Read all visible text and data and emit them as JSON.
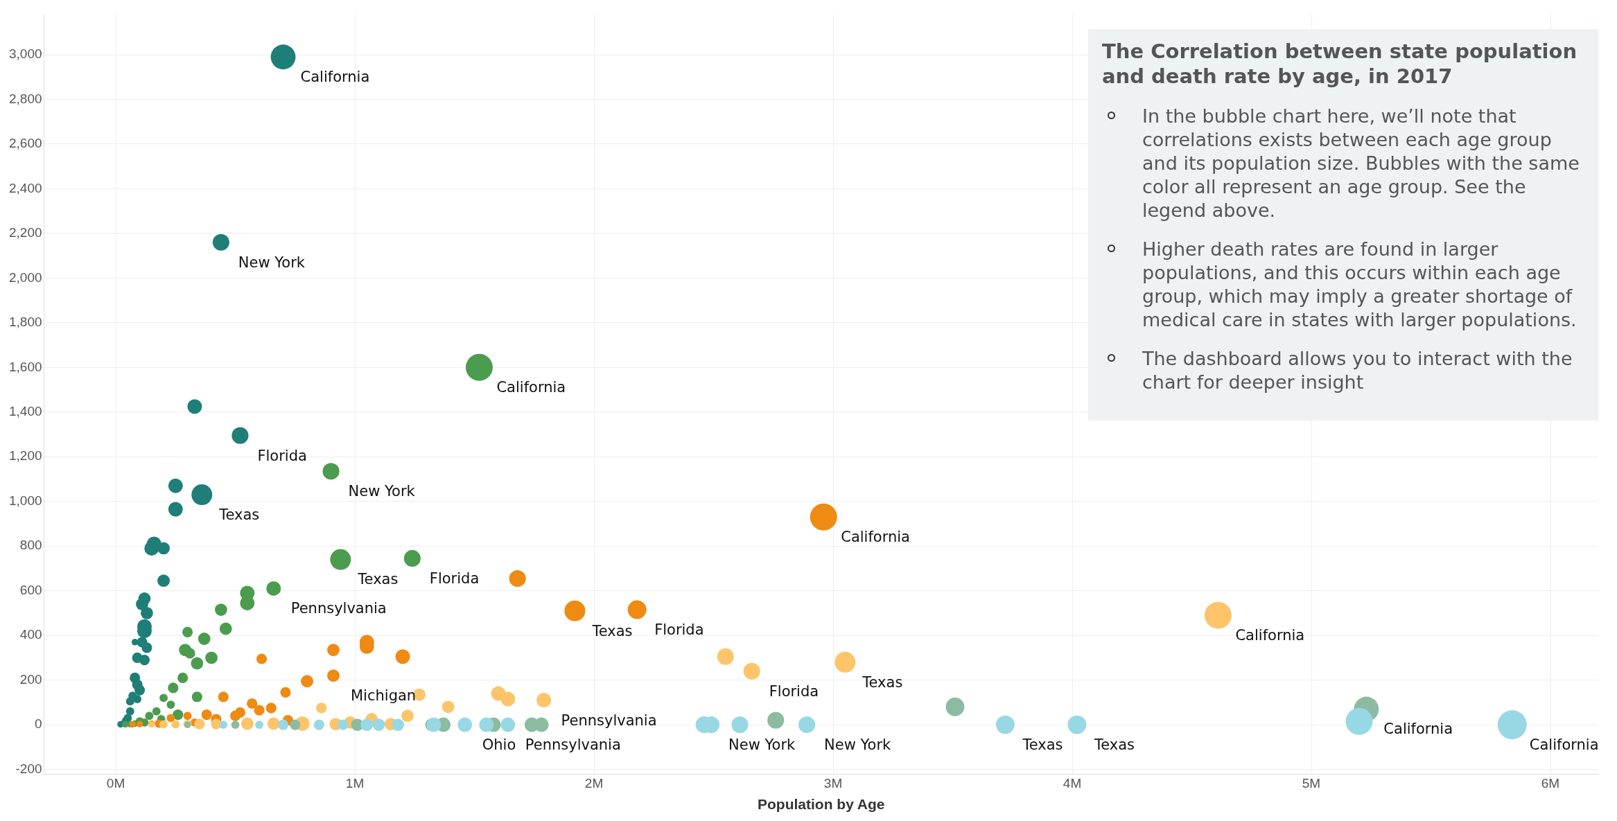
{
  "chart_data": {
    "type": "bubble",
    "title": "The Correlation between state population and death rate by age, in 2017",
    "xlabel": "Population by Age",
    "annotations": [
      "In the bubble chart here, we’ll note that correlations exists between each age group and its population size. Bubbles with the same color all represent an age group. See the legend above.",
      "Higher death rates are found in larger populations, and this occurs within each age group, which may imply a greater shortage of medical care in states with larger populations.",
      "The dashboard allows you to interact with the chart for deeper insight",
      {
        "text": "California",
        "x": 0.7,
        "y": 2990
      },
      {
        "text": "New York",
        "x": 0.44,
        "y": 2160
      },
      {
        "text": "Florida",
        "x": 0.52,
        "y": 1295
      },
      {
        "text": "Texas",
        "x": 0.36,
        "y": 1030
      },
      {
        "text": "California",
        "x": 1.52,
        "y": 1600
      },
      {
        "text": "New York",
        "x": 0.9,
        "y": 1135
      },
      {
        "text": "Texas",
        "x": 0.94,
        "y": 740
      },
      {
        "text": "Florida",
        "x": 1.24,
        "y": 745
      },
      {
        "text": "Pennsylvania",
        "x": 0.66,
        "y": 610
      },
      {
        "text": "California",
        "x": 2.96,
        "y": 930
      },
      {
        "text": "Texas",
        "x": 1.92,
        "y": 510
      },
      {
        "text": "Florida",
        "x": 2.18,
        "y": 515
      },
      {
        "text": "Michigan",
        "x": 0.91,
        "y": 220
      },
      {
        "text": "California",
        "x": 4.61,
        "y": 490
      },
      {
        "text": "Texas",
        "x": 3.05,
        "y": 280
      },
      {
        "text": "Florida",
        "x": 2.66,
        "y": 240
      },
      {
        "text": "Pennsylvania",
        "x": 1.79,
        "y": 110
      },
      {
        "text": "Ohio",
        "x": 1.46,
        "y": 0
      },
      {
        "text": "Pennsylvania",
        "x": 1.64,
        "y": 0
      },
      {
        "text": "New York",
        "x": 2.49,
        "y": 0
      },
      {
        "text": "New York",
        "x": 2.89,
        "y": 0
      },
      {
        "text": "Texas",
        "x": 3.72,
        "y": 0
      },
      {
        "text": "Texas",
        "x": 4.02,
        "y": 0
      },
      {
        "text": "California",
        "x": 5.23,
        "y": 70
      },
      {
        "text": "California",
        "x": 5.84,
        "y": 0
      }
    ],
    "series": [
      {
        "color": "#98d8e4",
        "x": [
          5.84,
          5.2,
          4.02,
          3.72,
          2.89,
          2.61,
          2.49,
          2.46,
          1.64,
          1.55,
          1.46,
          1.33,
          1.18,
          1.1,
          1.05,
          0.95,
          0.85,
          0.7,
          0.6,
          0.45
        ],
        "values": [
          0,
          15,
          0,
          0,
          0,
          0,
          0,
          0,
          0,
          0,
          0,
          0,
          0,
          0,
          0,
          0,
          0,
          0,
          0,
          0
        ],
        "sizes": [
          1,
          0.86,
          0.41,
          0.41,
          0.33,
          0.33,
          0.33,
          0.33,
          0.25,
          0.25,
          0.25,
          0.25,
          0.18,
          0.18,
          0.18,
          0.13,
          0.13,
          0.13,
          0.08,
          0.08
        ]
      },
      {
        "color": "#8dbba2",
        "x": [
          5.23,
          3.51,
          2.76,
          1.37,
          1.58,
          1.74,
          1.78,
          1.32,
          1.01,
          0.75,
          0.5,
          0.3
        ],
        "values": [
          70,
          80,
          20,
          0,
          0,
          0,
          0,
          0,
          0,
          0,
          0,
          0
        ],
        "sizes": [
          0.73,
          0.41,
          0.33,
          0.25,
          0.25,
          0.25,
          0.25,
          0.18,
          0.18,
          0.13,
          0.08,
          0.05
        ]
      },
      {
        "color": "#fdc46a",
        "x": [
          4.61,
          3.05,
          2.66,
          2.55,
          1.27,
          1.6,
          1.64,
          1.79,
          1.39,
          0.86,
          1.22,
          1.07,
          0.98,
          0.78,
          0.66,
          0.55,
          1.15,
          0.92,
          0.42,
          0.35,
          0.3,
          0.25,
          0.2,
          0.15
        ],
        "values": [
          490,
          280,
          240,
          305,
          135,
          140,
          115,
          110,
          80,
          75,
          40,
          25,
          10,
          5,
          5,
          5,
          3,
          3,
          3,
          3,
          3,
          2,
          2,
          2
        ],
        "sizes": [
          0.86,
          0.51,
          0.33,
          0.33,
          0.18,
          0.25,
          0.25,
          0.25,
          0.18,
          0.13,
          0.18,
          0.18,
          0.18,
          0.25,
          0.18,
          0.18,
          0.18,
          0.18,
          0.13,
          0.13,
          0.08,
          0.08,
          0.08,
          0.05
        ]
      },
      {
        "color": "#ef8a12",
        "x": [
          2.96,
          1.92,
          2.18,
          1.68,
          1.05,
          1.05,
          0.91,
          1.2,
          0.61,
          0.91,
          0.8,
          0.71,
          0.57,
          0.45,
          0.65,
          0.6,
          0.52,
          0.38,
          0.5,
          0.72,
          0.3,
          0.23,
          0.42,
          0.33,
          0.18,
          0.15,
          0.1,
          0.07
        ],
        "values": [
          930,
          510,
          515,
          655,
          370,
          350,
          335,
          305,
          295,
          220,
          195,
          145,
          95,
          125,
          75,
          65,
          55,
          45,
          40,
          20,
          40,
          30,
          25,
          10,
          5,
          5,
          3,
          2
        ],
        "sizes": [
          0.86,
          0.51,
          0.41,
          0.33,
          0.25,
          0.25,
          0.18,
          0.25,
          0.13,
          0.18,
          0.18,
          0.13,
          0.13,
          0.13,
          0.13,
          0.13,
          0.13,
          0.13,
          0.13,
          0.13,
          0.08,
          0.08,
          0.13,
          0.08,
          0.08,
          0.05,
          0.05,
          0.05
        ]
      },
      {
        "color": "#4b9c4e",
        "x": [
          1.52,
          0.9,
          0.94,
          1.24,
          0.66,
          0.55,
          0.55,
          0.44,
          0.46,
          0.3,
          0.37,
          0.29,
          0.31,
          0.4,
          0.34,
          0.28,
          0.24,
          0.34,
          0.2,
          0.23,
          0.17,
          0.26,
          0.14,
          0.19,
          0.1,
          0.12,
          0.08,
          0.06,
          0.04
        ],
        "values": [
          1600,
          1135,
          740,
          745,
          610,
          590,
          545,
          515,
          430,
          415,
          385,
          335,
          320,
          300,
          275,
          210,
          165,
          125,
          120,
          90,
          60,
          45,
          40,
          25,
          15,
          10,
          5,
          3,
          2
        ],
        "sizes": [
          0.86,
          0.33,
          0.51,
          0.33,
          0.25,
          0.25,
          0.25,
          0.18,
          0.18,
          0.13,
          0.18,
          0.18,
          0.13,
          0.18,
          0.18,
          0.13,
          0.13,
          0.13,
          0.08,
          0.08,
          0.08,
          0.13,
          0.08,
          0.08,
          0.08,
          0.08,
          0.05,
          0.05,
          0.05
        ]
      },
      {
        "color": "#1f7f78",
        "x": [
          0.7,
          0.44,
          0.33,
          0.52,
          0.25,
          0.36,
          0.25,
          0.16,
          0.15,
          0.2,
          0.2,
          0.12,
          0.11,
          0.13,
          0.12,
          0.12,
          0.08,
          0.11,
          0.13,
          0.09,
          0.12,
          0.08,
          0.09,
          0.1,
          0.07,
          0.09,
          0.06,
          0.06,
          0.05,
          0.04,
          0.03,
          0.02
        ],
        "values": [
          2990,
          2160,
          1425,
          1295,
          1070,
          1030,
          965,
          810,
          790,
          790,
          645,
          565,
          540,
          500,
          440,
          420,
          370,
          370,
          345,
          300,
          290,
          210,
          180,
          155,
          130,
          115,
          105,
          60,
          30,
          20,
          5,
          2
        ],
        "sizes": [
          0.73,
          0.33,
          0.25,
          0.33,
          0.25,
          0.51,
          0.25,
          0.25,
          0.25,
          0.18,
          0.18,
          0.18,
          0.18,
          0.18,
          0.25,
          0.25,
          0.05,
          0.13,
          0.13,
          0.13,
          0.13,
          0.13,
          0.13,
          0.13,
          0.08,
          0.08,
          0.08,
          0.08,
          0.08,
          0.05,
          0.05,
          0.05
        ]
      }
    ],
    "xlim": [
      -0.3,
      6.2
    ],
    "ylim": [
      -220,
      3180
    ],
    "xticks": [
      {
        "value": 0,
        "label": "0M"
      },
      {
        "value": 1,
        "label": "1M"
      },
      {
        "value": 2,
        "label": "2M"
      },
      {
        "value": 3,
        "label": "3M"
      },
      {
        "value": 4,
        "label": "4M"
      },
      {
        "value": 5,
        "label": "5M"
      },
      {
        "value": 6,
        "label": "6M"
      }
    ],
    "yticks": [
      -200,
      0,
      200,
      400,
      600,
      800,
      {
        "value": 1000,
        "label": "1,000"
      },
      {
        "value": 1200,
        "label": "1,200"
      },
      {
        "value": 1400,
        "label": "1,400"
      },
      {
        "value": 1600,
        "label": "1,600"
      },
      {
        "value": 1800,
        "label": "1,800"
      },
      {
        "value": 2000,
        "label": "2,000"
      },
      {
        "value": 2200,
        "label": "2,200"
      },
      {
        "value": 2400,
        "label": "2,400"
      },
      {
        "value": 2600,
        "label": "2,600"
      },
      {
        "value": 2800,
        "label": "2,800"
      },
      {
        "value": 3000,
        "label": "3,000"
      }
    ],
    "grid": true,
    "legend": false
  }
}
